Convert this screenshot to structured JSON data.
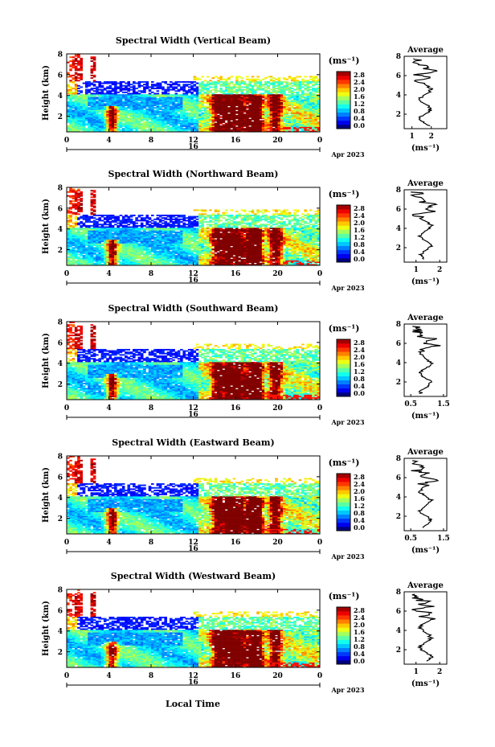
{
  "figure": {
    "date_label": "Apr 2023",
    "day_label": "16",
    "x_axis_label": "Local Time",
    "x_ticks": [
      "0",
      "4",
      "8",
      "12",
      "16",
      "20",
      "0"
    ],
    "y_label": "Height (km)",
    "y_ticks": [
      "2",
      "4",
      "6",
      "8"
    ],
    "unit_label": "(ms⁻¹)",
    "average_title": "Average"
  },
  "chart_data": [
    {
      "type": "heatmap",
      "title": "Spectral Width (Vertical Beam)",
      "xlabel": "",
      "ylabel": "Height (km)",
      "xlim": [
        0,
        24
      ],
      "ylim": [
        0.5,
        8
      ],
      "colorbar": {
        "ticks": [
          "2.8",
          "2.4",
          "2.0",
          "1.6",
          "1.2",
          "0.8",
          "0.4",
          "0.0"
        ],
        "range": [
          0,
          2.8
        ]
      },
      "profile": {
        "title": "Average",
        "xlabel": "(ms⁻¹)",
        "xticks": [
          "1",
          "2"
        ],
        "xlim": [
          0.6,
          2.8
        ],
        "yticks": [
          "2",
          "4",
          "6",
          "8"
        ]
      }
    },
    {
      "type": "heatmap",
      "title": "Spectral Width (Northward Beam)",
      "xlabel": "",
      "ylabel": "Height (km)",
      "xlim": [
        0,
        24
      ],
      "ylim": [
        0.5,
        8
      ],
      "colorbar": {
        "ticks": [
          "2.8",
          "2.4",
          "2.0",
          "1.6",
          "1.2",
          "0.8",
          "0.4",
          "0.0"
        ],
        "range": [
          0,
          2.8
        ]
      },
      "profile": {
        "title": "Average",
        "xlabel": "(ms⁻¹)",
        "xticks": [
          "1",
          "2"
        ],
        "xlim": [
          0.5,
          2.3
        ],
        "yticks": [
          "2",
          "4",
          "6",
          "8"
        ]
      }
    },
    {
      "type": "heatmap",
      "title": "Spectral Width (Southward Beam)",
      "xlabel": "",
      "ylabel": "Height (km)",
      "xlim": [
        0,
        24
      ],
      "ylim": [
        0.5,
        8
      ],
      "colorbar": {
        "ticks": [
          "2.8",
          "2.4",
          "2.0",
          "1.6",
          "1.2",
          "0.8",
          "0.4",
          "0.0"
        ],
        "range": [
          0,
          2.8
        ]
      },
      "profile": {
        "title": "Average",
        "xlabel": "(ms⁻¹)",
        "xticks": [
          "0.5",
          "1.5"
        ],
        "xlim": [
          0.3,
          1.6
        ],
        "yticks": [
          "2",
          "4",
          "6",
          "8"
        ]
      }
    },
    {
      "type": "heatmap",
      "title": "Spectral Width (Eastward Beam)",
      "xlabel": "",
      "ylabel": "Height (km)",
      "xlim": [
        0,
        24
      ],
      "ylim": [
        0.5,
        8
      ],
      "colorbar": {
        "ticks": [
          "2.8",
          "2.4",
          "2.0",
          "1.6",
          "1.2",
          "0.8",
          "0.4",
          "0.0"
        ],
        "range": [
          0,
          2.8
        ]
      },
      "profile": {
        "title": "Average",
        "xlabel": "(ms⁻¹)",
        "xticks": [
          "0.5",
          "1.5"
        ],
        "xlim": [
          0.3,
          1.6
        ],
        "yticks": [
          "2",
          "4",
          "6",
          "8"
        ]
      }
    },
    {
      "type": "heatmap",
      "title": "Spectral Width (Westward Beam)",
      "xlabel": "",
      "ylabel": "Height (km)",
      "xlim": [
        0,
        24
      ],
      "ylim": [
        0.5,
        8
      ],
      "colorbar": {
        "ticks": [
          "2.8",
          "2.4",
          "2.0",
          "1.6",
          "1.2",
          "0.8",
          "0.4",
          "0.0"
        ],
        "range": [
          0,
          2.8
        ]
      },
      "profile": {
        "title": "Average",
        "xlabel": "(ms⁻¹)",
        "xticks": [
          "1",
          "2"
        ],
        "xlim": [
          0.5,
          2.3
        ],
        "yticks": [
          "2",
          "4",
          "6",
          "8"
        ]
      }
    }
  ]
}
